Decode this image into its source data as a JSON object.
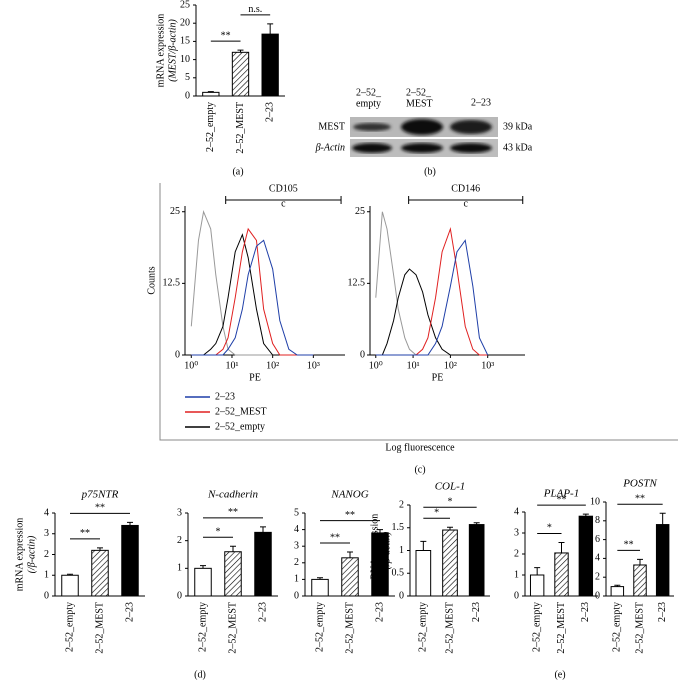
{
  "panel_labels": [
    "(a)",
    "(b)",
    "(c)",
    "(d)",
    "(e)"
  ],
  "blot": {
    "lanes": [
      [
        "2–52_",
        "empty"
      ],
      [
        "2–52_",
        "MEST"
      ],
      [
        "2–23"
      ]
    ],
    "rows": [
      {
        "label": "MEST",
        "size": "39 kDa"
      },
      {
        "label": "β-Actin",
        "size": "43 kDa"
      }
    ]
  },
  "chart_data": [
    {
      "type": "bar",
      "ylabel": [
        "mRNA expression",
        "(MEST/β-actin)"
      ],
      "categories": [
        "2–52_empty",
        "2–52_MEST",
        "2–23"
      ],
      "values": [
        1,
        12,
        17
      ],
      "errors": [
        0.2,
        0.6,
        2.8
      ],
      "bar_fills": [
        "#ffffff",
        "hatched",
        "#000000"
      ],
      "ylim": [
        0,
        25
      ],
      "yticks": [
        0,
        5,
        10,
        15,
        20,
        25
      ],
      "significance": [
        {
          "from": 0,
          "to": 1,
          "label": "**"
        },
        {
          "from": 1,
          "to": 2,
          "label": "n.s."
        }
      ]
    },
    {
      "type": "line",
      "xlog": true,
      "ylabel": "Counts",
      "xlabel": "PE",
      "xlabel_shared": "Log fluorescence",
      "legend": "below",
      "gate": {
        "label": "CD105",
        "from": 7,
        "to": 4800,
        "note": "c"
      },
      "xlim": [
        0.7,
        6000
      ],
      "xticks": [
        {
          "value": 1,
          "label": "10⁰"
        },
        {
          "value": 10,
          "label": "10¹"
        },
        {
          "value": 100,
          "label": "10²"
        },
        {
          "value": 1000,
          "label": "10³"
        }
      ],
      "ylim": [
        0,
        26
      ],
      "yticks": [
        0,
        12.5,
        25
      ],
      "x": [
        1,
        1.5,
        2,
        3,
        4,
        6,
        8,
        12,
        18,
        25,
        40,
        60,
        100,
        150,
        250,
        400,
        600,
        1000
      ],
      "series": [
        {
          "name": "2–23",
          "color": "#1f3fa8",
          "values": [
            0,
            0,
            0,
            0,
            0,
            0,
            1,
            3,
            8,
            14,
            19,
            20,
            15,
            6,
            1,
            0,
            0,
            0
          ]
        },
        {
          "name": "2–52_MEST",
          "color": "#e02020",
          "values": [
            0,
            0,
            0,
            0,
            0,
            1,
            3,
            10,
            18,
            22,
            20,
            8,
            2,
            0,
            0,
            0,
            0,
            0
          ]
        },
        {
          "name": "2–52_empty",
          "color": "#000000",
          "values": [
            0,
            0,
            0,
            1,
            2,
            5,
            10,
            18,
            21,
            17,
            8,
            2,
            0,
            0,
            0,
            0,
            0,
            0
          ]
        },
        {
          "color": "#999999",
          "values": [
            5,
            20,
            25,
            22,
            14,
            5,
            1,
            0,
            0,
            0,
            0,
            0,
            0,
            0,
            0,
            0,
            0,
            0
          ]
        }
      ]
    },
    {
      "type": "line",
      "xlog": true,
      "xlabel": "PE",
      "gate": {
        "label": "CD146",
        "from": 7.6,
        "to": 8700,
        "note": "c"
      },
      "xlim": [
        0.7,
        10000
      ],
      "xticks": [
        {
          "value": 1,
          "label": "10⁰"
        },
        {
          "value": 10,
          "label": "10¹"
        },
        {
          "value": 100,
          "label": "10²"
        },
        {
          "value": 1000,
          "label": "10³"
        }
      ],
      "ylim": [
        0,
        26
      ],
      "yticks": [
        0,
        12.5,
        25
      ],
      "x": [
        1,
        1.5,
        2,
        3,
        4,
        6,
        8,
        12,
        18,
        25,
        40,
        60,
        100,
        150,
        250,
        400,
        600,
        1000
      ],
      "series": [
        {
          "color": "#1f3fa8",
          "values": [
            0,
            0,
            0,
            0,
            0,
            0,
            0,
            0,
            0,
            0,
            2,
            5,
            12,
            18,
            20,
            12,
            3,
            0
          ]
        },
        {
          "color": "#e02020",
          "values": [
            0,
            0,
            0,
            0,
            0,
            0,
            0,
            0,
            1,
            3,
            10,
            18,
            22,
            15,
            5,
            1,
            0,
            0
          ]
        },
        {
          "color": "#000000",
          "values": [
            0,
            0,
            2,
            6,
            10,
            14,
            15,
            14,
            11,
            7,
            3,
            1,
            0,
            0,
            0,
            0,
            0,
            0
          ]
        },
        {
          "color": "#999999",
          "values": [
            10,
            25,
            22,
            14,
            8,
            3,
            1,
            0,
            0,
            0,
            0,
            0,
            0,
            0,
            0,
            0,
            0,
            0
          ]
        }
      ]
    },
    {
      "type": "bar",
      "title": "p75NTR",
      "ylabel": [
        "mRNA expression",
        "(/β-actin)"
      ],
      "categories": [
        "2–52_empty",
        "2–52_MEST",
        "2–23"
      ],
      "values": [
        1.0,
        2.2,
        3.4
      ],
      "errors": [
        0.05,
        0.12,
        0.15
      ],
      "bar_fills": [
        "#ffffff",
        "hatched",
        "#000000"
      ],
      "ylim": [
        0,
        4
      ],
      "yticks": [
        0,
        1,
        2,
        3,
        4
      ],
      "significance": [
        {
          "from": 0,
          "to": 1,
          "label": "**"
        },
        {
          "from": 0,
          "to": 2,
          "label": "**"
        }
      ]
    },
    {
      "type": "bar",
      "title": "N-cadherin",
      "categories": [
        "2–52_empty",
        "2–52_MEST",
        "2–23"
      ],
      "values": [
        1.0,
        1.6,
        2.3
      ],
      "errors": [
        0.1,
        0.2,
        0.2
      ],
      "bar_fills": [
        "#ffffff",
        "hatched",
        "#000000"
      ],
      "ylim": [
        0,
        3
      ],
      "yticks": [
        0,
        1,
        2,
        3
      ],
      "significance": [
        {
          "from": 0,
          "to": 1,
          "label": "*"
        },
        {
          "from": 0,
          "to": 2,
          "label": "**"
        }
      ]
    },
    {
      "type": "bar",
      "title": "NANOG",
      "categories": [
        "2–52_empty",
        "2–52_MEST",
        "2–23"
      ],
      "values": [
        1.0,
        2.3,
        3.8
      ],
      "errors": [
        0.1,
        0.35,
        0.2
      ],
      "bar_fills": [
        "#ffffff",
        "hatched",
        "#000000"
      ],
      "ylim": [
        0,
        5
      ],
      "yticks": [
        0,
        1,
        2,
        3,
        4,
        5
      ],
      "significance": [
        {
          "from": 0,
          "to": 1,
          "label": "**"
        },
        {
          "from": 0,
          "to": 2,
          "label": "**"
        }
      ]
    },
    {
      "type": "bar",
      "title": "COL-1",
      "ylabel": [
        "mRNA expression",
        "(/β-actin)"
      ],
      "categories": [
        "2–52_empty",
        "2–52_MEST",
        "2–23"
      ],
      "values": [
        1.0,
        1.45,
        1.57
      ],
      "errors": [
        0.2,
        0.06,
        0.04
      ],
      "bar_fills": [
        "#ffffff",
        "hatched",
        "#000000"
      ],
      "ylim": [
        0,
        2
      ],
      "yticks": [
        0,
        0.5,
        1,
        1.5,
        2
      ],
      "significance": [
        {
          "from": 0,
          "to": 1,
          "label": "*"
        },
        {
          "from": 0,
          "to": 2,
          "label": "*"
        }
      ]
    },
    {
      "type": "bar",
      "title": "PLAP-1",
      "categories": [
        "2–52_empty",
        "2–52_MEST",
        "2–23"
      ],
      "values": [
        1.0,
        2.05,
        3.8
      ],
      "errors": [
        0.35,
        0.5,
        0.1
      ],
      "bar_fills": [
        "#ffffff",
        "hatched",
        "#000000"
      ],
      "ylim": [
        0,
        4
      ],
      "yticks": [
        0,
        1,
        2,
        3,
        4
      ],
      "significance": [
        {
          "from": 0,
          "to": 1,
          "label": "*"
        },
        {
          "from": 0,
          "to": 2,
          "label": "**"
        }
      ]
    },
    {
      "type": "bar",
      "title": "POSTN",
      "categories": [
        "2–52_empty",
        "2–52_MEST",
        "2–23"
      ],
      "values": [
        1.0,
        3.3,
        7.6
      ],
      "errors": [
        0.15,
        0.6,
        1.2
      ],
      "bar_fills": [
        "#ffffff",
        "hatched",
        "#000000"
      ],
      "ylim": [
        0,
        10
      ],
      "yticks": [
        0,
        2,
        4,
        6,
        8,
        10
      ],
      "significance": [
        {
          "from": 0,
          "to": 1,
          "label": "**"
        },
        {
          "from": 0,
          "to": 2,
          "label": "**"
        }
      ]
    }
  ]
}
